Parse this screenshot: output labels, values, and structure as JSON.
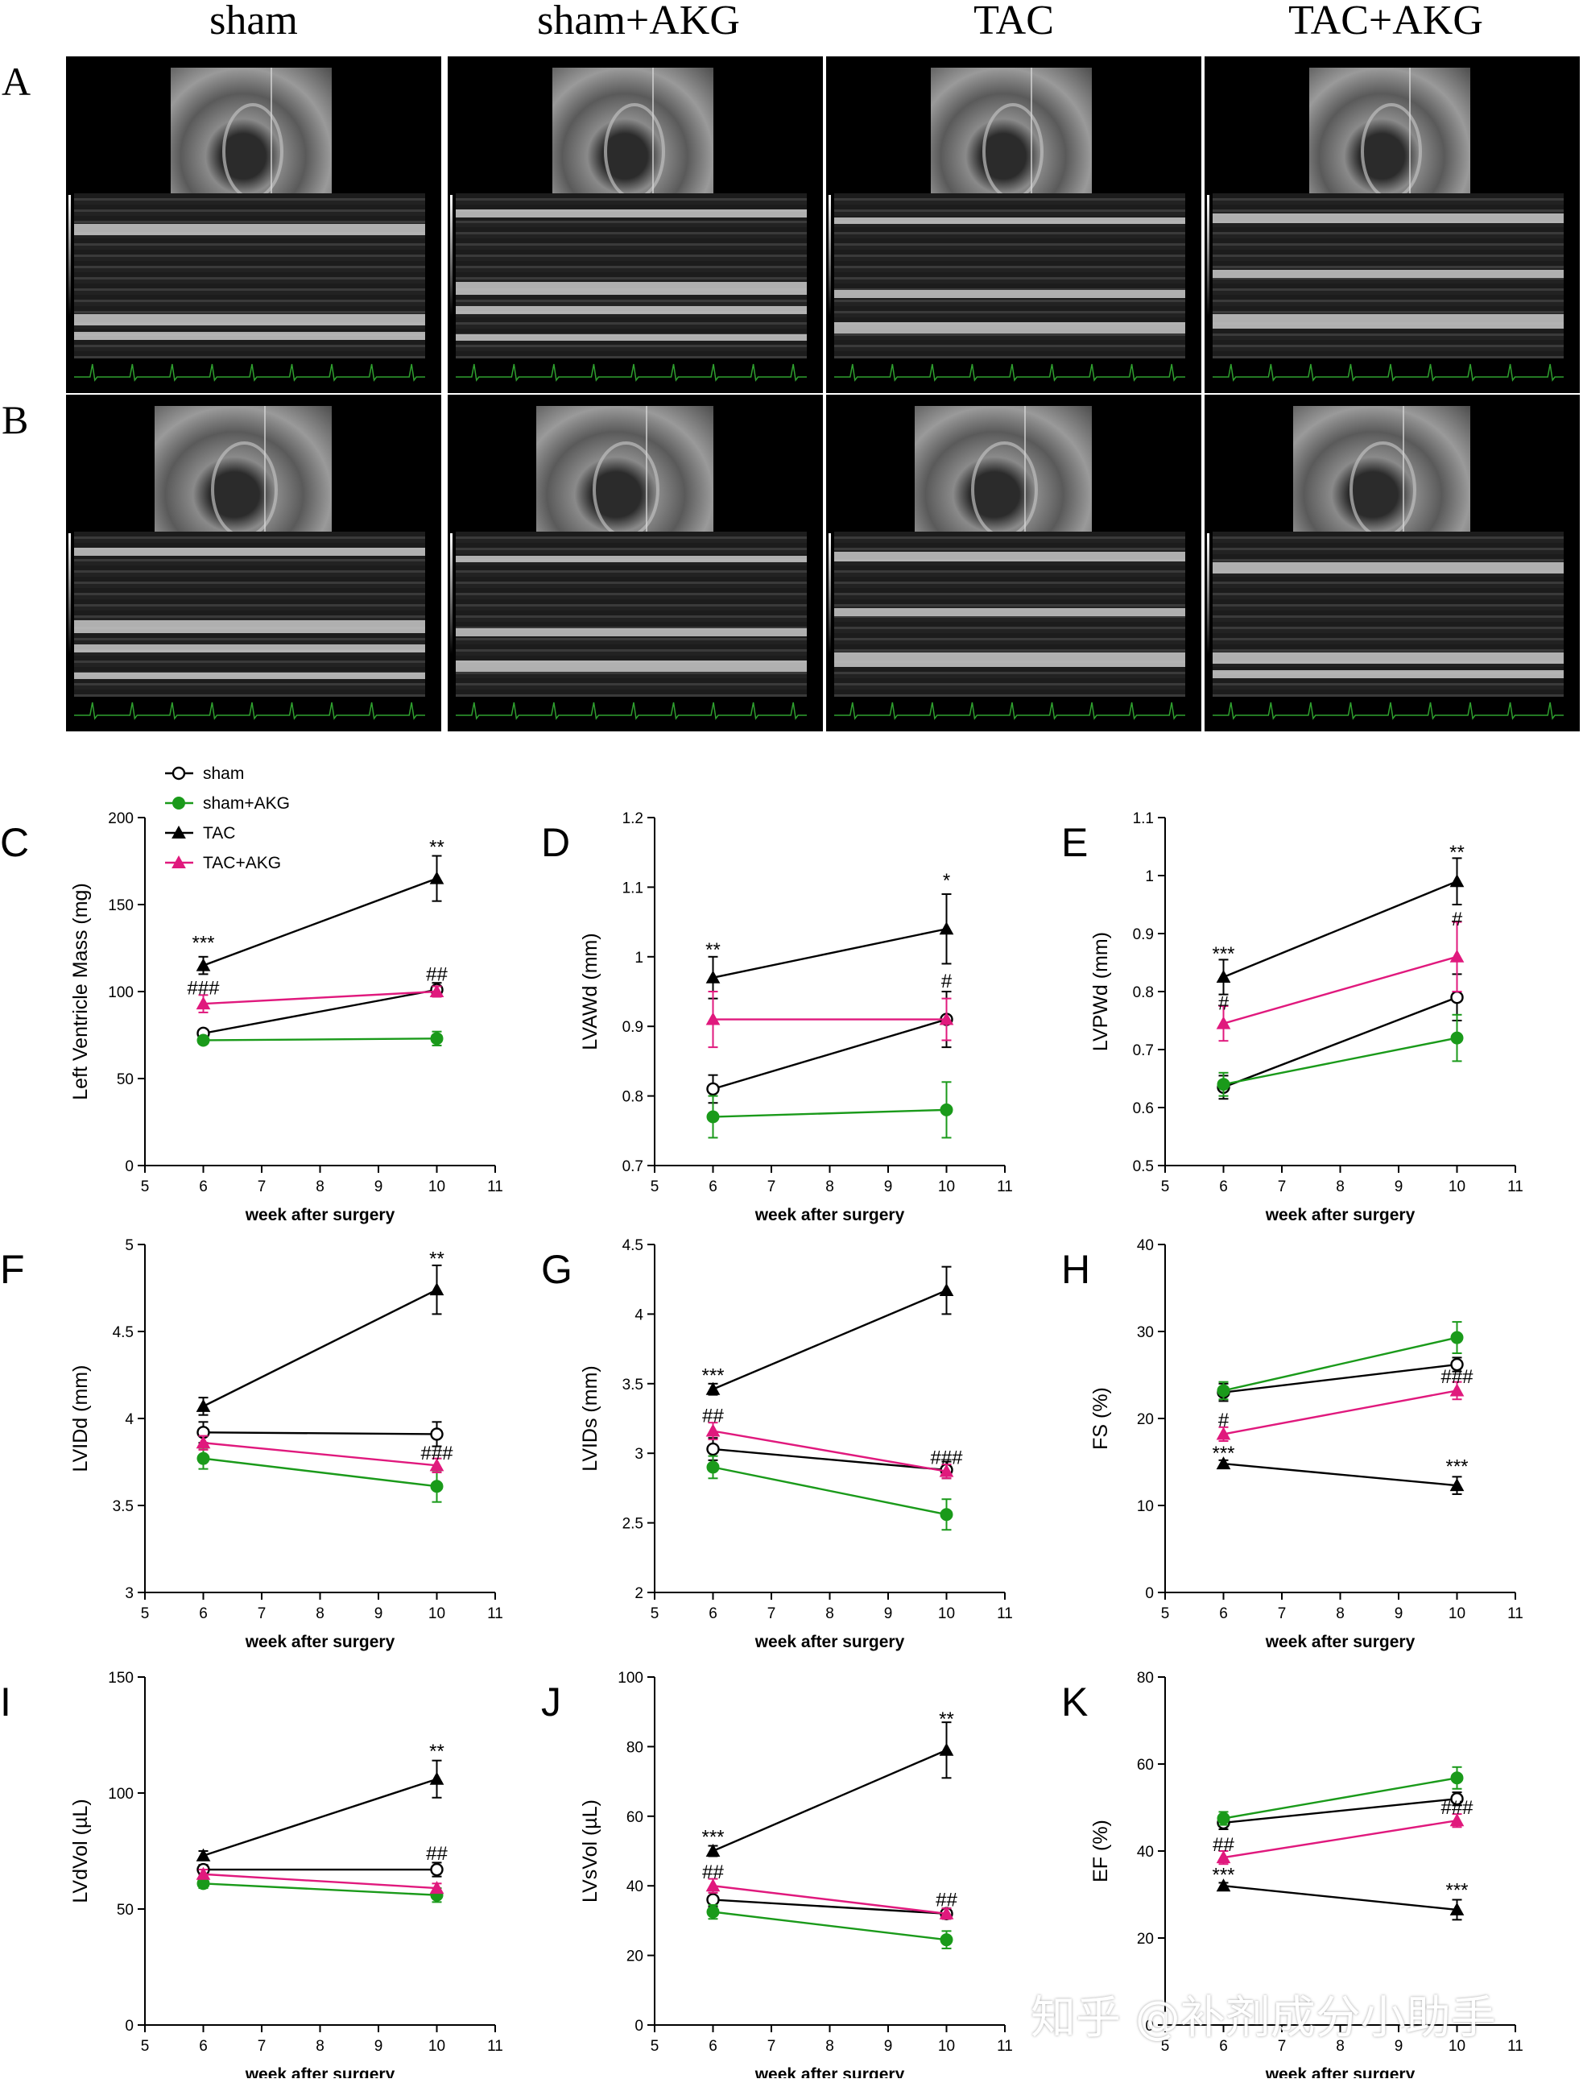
{
  "column_labels": [
    "sham",
    "sham+AKG",
    "TAC",
    "TAC+AKG"
  ],
  "row_labels": [
    "A",
    "B"
  ],
  "legend": {
    "entries": [
      {
        "name": "sham",
        "color": "#000000",
        "marker": "open-circle"
      },
      {
        "name": "sham+AKG",
        "color": "#1a9a1a",
        "marker": "filled-circle"
      },
      {
        "name": "TAC",
        "color": "#000000",
        "marker": "triangle"
      },
      {
        "name": "TAC+AKG",
        "color": "#e0197d",
        "marker": "triangle"
      }
    ]
  },
  "watermark": "知乎 @补剂成分小助手",
  "chart_data": [
    {
      "panel": "C",
      "type": "line",
      "ylabel": "Left Ventricle Mass (mg)",
      "xlabel": "week after surgery",
      "xlim": [
        5,
        11
      ],
      "xticks": [
        5,
        6,
        7,
        8,
        9,
        10,
        11
      ],
      "ylim": [
        0,
        200
      ],
      "yticks": [
        0,
        50,
        100,
        150,
        200
      ],
      "x": [
        6,
        10
      ],
      "series": [
        {
          "name": "sham",
          "values": [
            76,
            101
          ],
          "err": [
            2,
            4
          ]
        },
        {
          "name": "sham+AKG",
          "values": [
            72,
            73
          ],
          "err": [
            2,
            4
          ]
        },
        {
          "name": "TAC",
          "values": [
            115,
            165
          ],
          "err": [
            5,
            13
          ]
        },
        {
          "name": "TAC+AKG",
          "values": [
            93,
            100
          ],
          "err": [
            5,
            3
          ]
        }
      ],
      "annotations": [
        {
          "x": 6,
          "y": 128,
          "text": "***"
        },
        {
          "x": 10,
          "y": 183,
          "text": "**"
        },
        {
          "x": 6,
          "y": 102,
          "text": "###"
        },
        {
          "x": 10,
          "y": 110,
          "text": "##"
        }
      ]
    },
    {
      "panel": "D",
      "type": "line",
      "ylabel": "LVAWd (mm)",
      "xlabel": "week after surgery",
      "xlim": [
        5,
        11
      ],
      "xticks": [
        5,
        6,
        7,
        8,
        9,
        10,
        11
      ],
      "ylim": [
        0.7,
        1.2
      ],
      "yticks": [
        0.7,
        0.8,
        0.9,
        1.0,
        1.1,
        1.2
      ],
      "x": [
        6,
        10
      ],
      "series": [
        {
          "name": "sham",
          "values": [
            0.81,
            0.91
          ],
          "err": [
            0.02,
            0.04
          ]
        },
        {
          "name": "sham+AKG",
          "values": [
            0.77,
            0.78
          ],
          "err": [
            0.03,
            0.04
          ]
        },
        {
          "name": "TAC",
          "values": [
            0.97,
            1.04
          ],
          "err": [
            0.03,
            0.05
          ]
        },
        {
          "name": "TAC+AKG",
          "values": [
            0.91,
            0.91
          ],
          "err": [
            0.04,
            0.03
          ]
        }
      ],
      "annotations": [
        {
          "x": 6,
          "y": 1.01,
          "text": "**"
        },
        {
          "x": 10,
          "y": 1.11,
          "text": "*"
        },
        {
          "x": 10,
          "y": 0.965,
          "text": "#"
        }
      ]
    },
    {
      "panel": "E",
      "type": "line",
      "ylabel": "LVPWd (mm)",
      "xlabel": "week after surgery",
      "xlim": [
        5,
        11
      ],
      "xticks": [
        5,
        6,
        7,
        8,
        9,
        10,
        11
      ],
      "ylim": [
        0.5,
        1.1
      ],
      "yticks": [
        0.5,
        0.6,
        0.7,
        0.8,
        0.9,
        1.0,
        1.1
      ],
      "x": [
        6,
        10
      ],
      "series": [
        {
          "name": "sham",
          "values": [
            0.635,
            0.79
          ],
          "err": [
            0.02,
            0.04
          ]
        },
        {
          "name": "sham+AKG",
          "values": [
            0.64,
            0.72
          ],
          "err": [
            0.02,
            0.04
          ]
        },
        {
          "name": "TAC",
          "values": [
            0.825,
            0.99
          ],
          "err": [
            0.03,
            0.04
          ]
        },
        {
          "name": "TAC+AKG",
          "values": [
            0.745,
            0.86
          ],
          "err": [
            0.03,
            0.06
          ]
        }
      ],
      "annotations": [
        {
          "x": 6,
          "y": 0.865,
          "text": "***"
        },
        {
          "x": 10,
          "y": 1.04,
          "text": "**"
        },
        {
          "x": 6,
          "y": 0.78,
          "text": "#"
        },
        {
          "x": 10,
          "y": 0.925,
          "text": "#"
        }
      ]
    },
    {
      "panel": "F",
      "type": "line",
      "ylabel": "LVIDd (mm)",
      "xlabel": "week after surgery",
      "xlim": [
        5,
        11
      ],
      "xticks": [
        5,
        6,
        7,
        8,
        9,
        10,
        11
      ],
      "ylim": [
        3.0,
        5.0
      ],
      "yticks": [
        3.0,
        3.5,
        4.0,
        4.5,
        5.0
      ],
      "x": [
        6,
        10
      ],
      "series": [
        {
          "name": "sham",
          "values": [
            3.92,
            3.91
          ],
          "err": [
            0.06,
            0.07
          ]
        },
        {
          "name": "sham+AKG",
          "values": [
            3.77,
            3.61
          ],
          "err": [
            0.06,
            0.09
          ]
        },
        {
          "name": "TAC",
          "values": [
            4.07,
            4.74
          ],
          "err": [
            0.05,
            0.14
          ]
        },
        {
          "name": "TAC+AKG",
          "values": [
            3.86,
            3.73
          ],
          "err": [
            0.04,
            0.04
          ]
        }
      ],
      "annotations": [
        {
          "x": 10,
          "y": 4.92,
          "text": "**"
        },
        {
          "x": 10,
          "y": 3.8,
          "text": "###"
        }
      ]
    },
    {
      "panel": "G",
      "type": "line",
      "ylabel": "LVIDs (mm)",
      "xlabel": "week after surgery",
      "xlim": [
        5,
        11
      ],
      "xticks": [
        5,
        6,
        7,
        8,
        9,
        10,
        11
      ],
      "ylim": [
        2.0,
        4.5
      ],
      "yticks": [
        2.0,
        2.5,
        3.0,
        3.5,
        4.0,
        4.5
      ],
      "x": [
        6,
        10
      ],
      "series": [
        {
          "name": "sham",
          "values": [
            3.03,
            2.88
          ],
          "err": [
            0.08,
            0.06
          ]
        },
        {
          "name": "sham+AKG",
          "values": [
            2.9,
            2.56
          ],
          "err": [
            0.08,
            0.11
          ]
        },
        {
          "name": "TAC",
          "values": [
            3.46,
            4.17
          ],
          "err": [
            0.04,
            0.17
          ]
        },
        {
          "name": "TAC+AKG",
          "values": [
            3.16,
            2.87
          ],
          "err": [
            0.06,
            0.05
          ]
        }
      ],
      "annotations": [
        {
          "x": 6,
          "y": 3.56,
          "text": "***"
        },
        {
          "x": 6,
          "y": 3.27,
          "text": "##"
        },
        {
          "x": 10,
          "y": 2.97,
          "text": "###"
        }
      ]
    },
    {
      "panel": "H",
      "type": "line",
      "ylabel": "FS (%)",
      "xlabel": "week after surgery",
      "xlim": [
        5,
        11
      ],
      "xticks": [
        5,
        6,
        7,
        8,
        9,
        10,
        11
      ],
      "ylim": [
        0,
        40
      ],
      "yticks": [
        0,
        10,
        20,
        30,
        40
      ],
      "x": [
        6,
        10
      ],
      "series": [
        {
          "name": "sham",
          "values": [
            23,
            26.2
          ],
          "err": [
            1,
            0.8
          ]
        },
        {
          "name": "sham+AKG",
          "values": [
            23.2,
            29.3
          ],
          "err": [
            1,
            1.8
          ]
        },
        {
          "name": "TAC",
          "values": [
            14.8,
            12.3
          ],
          "err": [
            0.4,
            1
          ]
        },
        {
          "name": "TAC+AKG",
          "values": [
            18.2,
            23.2
          ],
          "err": [
            0.8,
            1
          ]
        }
      ],
      "annotations": [
        {
          "x": 6,
          "y": 16,
          "text": "***"
        },
        {
          "x": 10,
          "y": 14.5,
          "text": "***"
        },
        {
          "x": 6,
          "y": 19.8,
          "text": "#"
        },
        {
          "x": 10,
          "y": 24.8,
          "text": "###"
        }
      ]
    },
    {
      "panel": "I",
      "type": "line",
      "ylabel": "LVdVol (µL)",
      "xlabel": "week after surgery",
      "xlim": [
        5,
        11
      ],
      "xticks": [
        5,
        6,
        7,
        8,
        9,
        10,
        11
      ],
      "ylim": [
        0,
        150
      ],
      "yticks": [
        0,
        50,
        100,
        150
      ],
      "x": [
        6,
        10
      ],
      "series": [
        {
          "name": "sham",
          "values": [
            67,
            67
          ],
          "err": [
            2,
            3
          ]
        },
        {
          "name": "sham+AKG",
          "values": [
            61,
            56
          ],
          "err": [
            2,
            3
          ]
        },
        {
          "name": "TAC",
          "values": [
            73,
            106
          ],
          "err": [
            2,
            8
          ]
        },
        {
          "name": "TAC+AKG",
          "values": [
            65,
            59
          ],
          "err": [
            2,
            2
          ]
        }
      ],
      "annotations": [
        {
          "x": 10,
          "y": 118,
          "text": "**"
        },
        {
          "x": 10,
          "y": 74,
          "text": "##"
        }
      ]
    },
    {
      "panel": "J",
      "type": "line",
      "ylabel": "LVsVol (µL)",
      "xlabel": "week after surgery",
      "xlim": [
        5,
        11
      ],
      "xticks": [
        5,
        6,
        7,
        8,
        9,
        10,
        11
      ],
      "ylim": [
        0,
        100
      ],
      "yticks": [
        0,
        20,
        40,
        60,
        80,
        100
      ],
      "x": [
        6,
        10
      ],
      "series": [
        {
          "name": "sham",
          "values": [
            36,
            32
          ],
          "err": [
            2,
            1.5
          ]
        },
        {
          "name": "sham+AKG",
          "values": [
            32.5,
            24.5
          ],
          "err": [
            2,
            2.5
          ]
        },
        {
          "name": "TAC",
          "values": [
            50,
            79
          ],
          "err": [
            1.5,
            8
          ]
        },
        {
          "name": "TAC+AKG",
          "values": [
            40,
            32
          ],
          "err": [
            2,
            1.5
          ]
        }
      ],
      "annotations": [
        {
          "x": 6,
          "y": 54,
          "text": "***"
        },
        {
          "x": 10,
          "y": 88,
          "text": "**"
        },
        {
          "x": 6,
          "y": 44,
          "text": "##"
        },
        {
          "x": 10,
          "y": 36,
          "text": "##"
        }
      ]
    },
    {
      "panel": "K",
      "type": "line",
      "ylabel": "EF (%)",
      "xlabel": "week after surgery",
      "xlim": [
        5,
        11
      ],
      "xticks": [
        5,
        6,
        7,
        8,
        9,
        10,
        11
      ],
      "ylim": [
        0,
        80
      ],
      "yticks": [
        0,
        20,
        40,
        60,
        80
      ],
      "x": [
        6,
        10
      ],
      "series": [
        {
          "name": "sham",
          "values": [
            46.5,
            52
          ],
          "err": [
            1.5,
            1.5
          ]
        },
        {
          "name": "sham+AKG",
          "values": [
            47.5,
            56.8
          ],
          "err": [
            1.5,
            2.5
          ]
        },
        {
          "name": "TAC",
          "values": [
            32,
            26.5
          ],
          "err": [
            0.7,
            2.3
          ]
        },
        {
          "name": "TAC+AKG",
          "values": [
            38.5,
            47
          ],
          "err": [
            1.5,
            1.5
          ]
        }
      ],
      "annotations": [
        {
          "x": 6,
          "y": 34.5,
          "text": "***"
        },
        {
          "x": 10,
          "y": 31,
          "text": "***"
        },
        {
          "x": 6,
          "y": 41.5,
          "text": "##"
        },
        {
          "x": 10,
          "y": 50,
          "text": "###"
        }
      ]
    }
  ]
}
